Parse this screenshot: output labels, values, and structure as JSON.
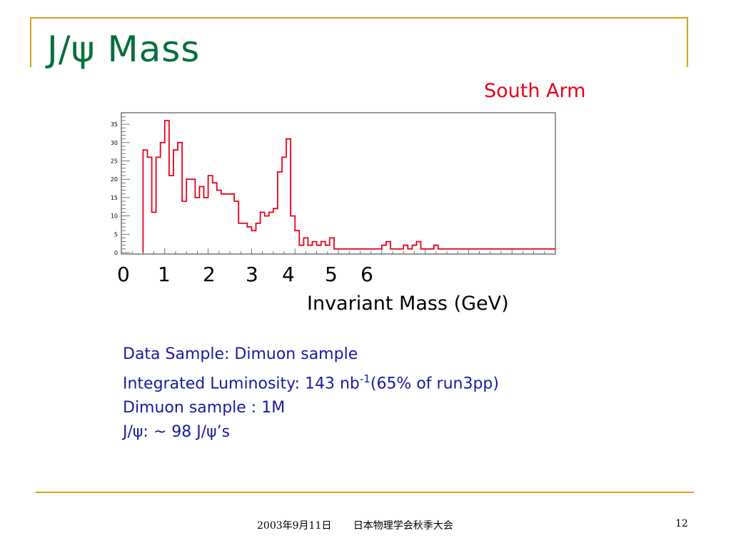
{
  "slide": {
    "title": "J/ψ  Mass",
    "arm_label": "South Arm",
    "footer_date": "2003年9月11日",
    "footer_meeting": "日本物理学会秋季大会",
    "page_number": "12"
  },
  "info": {
    "line1": "Data Sample: Dimuon sample",
    "line2_prefix": "Integrated Luminosity: 143 nb",
    "line2_sup": "-1",
    "line2_suffix": "(65% of run3pp)",
    "line3": "Dimuon sample : 1M",
    "line4": "J/ψ: ~ 98 J/ψ’s"
  },
  "chart_data": {
    "type": "bar",
    "style": "step-histogram",
    "color": "#e8001a",
    "xlabel": "Invariant Mass (GeV)",
    "x_ticks": [
      "0",
      "1",
      "2",
      "3",
      "4",
      "5",
      "6"
    ],
    "y_ticks": [
      "0",
      "5",
      "10",
      "15",
      "20",
      "25",
      "30",
      "35"
    ],
    "ylim": [
      0,
      38
    ],
    "xlim": [
      0,
      10
    ],
    "bin_width": 0.1,
    "bin_start": 0.5,
    "values": [
      28,
      26,
      11,
      26,
      30,
      36,
      21,
      28,
      30,
      14,
      20,
      20,
      15,
      18,
      15,
      21,
      19,
      17,
      16,
      16,
      16,
      14,
      8,
      8,
      7,
      6,
      8,
      11,
      10,
      11,
      12,
      22,
      26,
      31,
      10,
      6,
      2,
      4,
      2,
      3,
      2,
      3,
      2,
      4,
      1,
      1,
      1,
      1,
      1,
      1,
      1,
      1,
      1,
      1,
      1,
      2,
      3,
      1,
      1,
      1,
      2,
      1,
      2,
      3,
      1,
      1,
      1,
      2,
      1,
      1,
      1,
      1,
      1,
      1,
      1,
      1,
      1,
      1,
      1,
      1,
      1,
      1,
      1,
      1,
      1,
      1,
      1,
      1,
      1,
      1,
      1,
      1,
      1,
      1,
      1
    ]
  }
}
